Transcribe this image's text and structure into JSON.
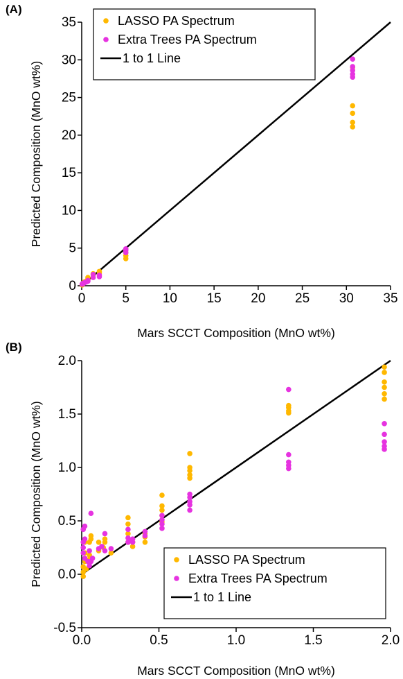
{
  "figure": {
    "panel_labels": [
      "(A)",
      "(B)"
    ]
  },
  "colors": {
    "lasso": "#FFB800",
    "extra_trees": "#E633E0",
    "line": "#000000"
  },
  "chart_data": [
    {
      "type": "scatter",
      "panel": "(A)",
      "xlabel": "Mars SCCT Composition (MnO wt%)",
      "ylabel": "Predicted Composition (MnO wt%)",
      "xlim": [
        0,
        35
      ],
      "ylim": [
        0,
        35
      ],
      "xticks": [
        "0",
        "5",
        "10",
        "15",
        "20",
        "25",
        "30",
        "35"
      ],
      "yticks": [
        "0",
        "5",
        "10",
        "15",
        "20",
        "25",
        "30",
        "35"
      ],
      "xtick_values": [
        0,
        5,
        10,
        15,
        20,
        25,
        30,
        35
      ],
      "ytick_values": [
        0,
        5,
        10,
        15,
        20,
        25,
        30,
        35
      ],
      "legend_position": "top-left",
      "legend": [
        "LASSO PA Spectrum",
        "Extra Trees PA Spectrum",
        "1 to 1 Line"
      ],
      "series": [
        {
          "name": "LASSO PA Spectrum",
          "x": [
            0.05,
            0.1,
            0.2,
            0.3,
            0.5,
            0.7,
            0.7,
            1.3,
            1.3,
            2.0,
            2.0,
            5.0,
            5.0,
            5.0,
            5.0,
            30.7,
            30.7,
            30.7,
            30.7,
            30.7
          ],
          "y": [
            0.1,
            0.2,
            0.4,
            0.5,
            0.6,
            0.9,
            1.1,
            1.4,
            1.6,
            1.7,
            1.9,
            3.6,
            4.0,
            4.4,
            4.8,
            21.1,
            21.7,
            22.9,
            23.9,
            29.0
          ]
        },
        {
          "name": "Extra Trees PA Spectrum",
          "x": [
            0.05,
            0.1,
            0.2,
            0.3,
            0.5,
            0.7,
            0.7,
            1.3,
            1.3,
            2.0,
            2.0,
            5.0,
            5.0,
            5.0,
            30.7,
            30.7,
            30.7,
            30.7,
            30.7
          ],
          "y": [
            0.2,
            0.3,
            0.3,
            0.4,
            0.5,
            0.6,
            0.7,
            1.1,
            1.5,
            1.2,
            1.4,
            4.4,
            4.7,
            4.9,
            27.7,
            28.1,
            28.6,
            29.1,
            30.1
          ]
        },
        {
          "name": "1 to 1 Line",
          "x": [
            0,
            35
          ],
          "y": [
            0,
            35
          ]
        }
      ]
    },
    {
      "type": "scatter",
      "panel": "(B)",
      "xlabel": "Mars SCCT Composition (MnO wt%)",
      "ylabel": "Predicted Composition (MnO wt%)",
      "xlim": [
        0,
        2
      ],
      "ylim": [
        -0.5,
        2
      ],
      "xticks": [
        "0.0",
        "0.5",
        "1.0",
        "1.5",
        "2.0"
      ],
      "yticks": [
        "-0.5",
        "0.0",
        "0.5",
        "1.0",
        "1.5",
        "2.0"
      ],
      "xtick_values": [
        0,
        0.5,
        1,
        1.5,
        2
      ],
      "ytick_values": [
        -0.5,
        0,
        0.5,
        1,
        1.5,
        2
      ],
      "legend_position": "bottom-right",
      "legend": [
        "LASSO PA Spectrum",
        "Extra Trees PA Spectrum",
        "1 to 1 Line"
      ],
      "series": [
        {
          "name": "LASSO PA Spectrum",
          "x": [
            0.01,
            0.01,
            0.01,
            0.02,
            0.02,
            0.02,
            0.03,
            0.05,
            0.05,
            0.05,
            0.06,
            0.06,
            0.11,
            0.11,
            0.14,
            0.15,
            0.15,
            0.19,
            0.3,
            0.3,
            0.3,
            0.3,
            0.33,
            0.33,
            0.41,
            0.41,
            0.41,
            0.52,
            0.52,
            0.52,
            0.52,
            0.52,
            0.7,
            0.7,
            0.7,
            0.7,
            0.7,
            1.34,
            1.34,
            1.34,
            1.34,
            1.96,
            1.96,
            1.96,
            1.96,
            1.96,
            1.96
          ],
          "y": [
            -0.02,
            0.02,
            0.07,
            0.12,
            0.2,
            0.3,
            0.05,
            0.14,
            0.18,
            0.3,
            0.33,
            0.36,
            0.22,
            0.3,
            0.25,
            0.3,
            0.33,
            0.2,
            0.3,
            0.38,
            0.47,
            0.53,
            0.26,
            0.3,
            0.3,
            0.35,
            0.38,
            0.49,
            0.55,
            0.6,
            0.64,
            0.74,
            0.9,
            0.93,
            0.97,
            1.0,
            1.13,
            1.51,
            1.53,
            1.56,
            1.58,
            1.64,
            1.69,
            1.75,
            1.8,
            1.89,
            1.94
          ]
        },
        {
          "name": "Extra Trees PA Spectrum",
          "x": [
            0.01,
            0.01,
            0.01,
            0.01,
            0.02,
            0.02,
            0.02,
            0.04,
            0.05,
            0.05,
            0.06,
            0.06,
            0.07,
            0.11,
            0.13,
            0.15,
            0.15,
            0.19,
            0.3,
            0.3,
            0.3,
            0.31,
            0.33,
            0.33,
            0.41,
            0.41,
            0.52,
            0.52,
            0.52,
            0.52,
            0.7,
            0.7,
            0.7,
            0.7,
            0.7,
            1.34,
            1.34,
            1.34,
            1.34,
            1.34,
            1.96,
            1.96,
            1.96,
            1.96,
            1.96
          ],
          "y": [
            0.2,
            0.25,
            0.3,
            0.42,
            0.15,
            0.33,
            0.45,
            0.12,
            0.08,
            0.22,
            0.12,
            0.57,
            0.15,
            0.24,
            0.26,
            0.22,
            0.38,
            0.24,
            0.3,
            0.34,
            0.42,
            0.32,
            0.3,
            0.33,
            0.36,
            0.4,
            0.43,
            0.47,
            0.51,
            0.55,
            0.6,
            0.65,
            0.68,
            0.72,
            0.75,
            0.99,
            1.02,
            1.05,
            1.12,
            1.73,
            1.17,
            1.2,
            1.24,
            1.31,
            1.41
          ]
        },
        {
          "name": "1 to 1 Line",
          "x": [
            0,
            2
          ],
          "y": [
            0,
            2
          ]
        }
      ]
    }
  ]
}
